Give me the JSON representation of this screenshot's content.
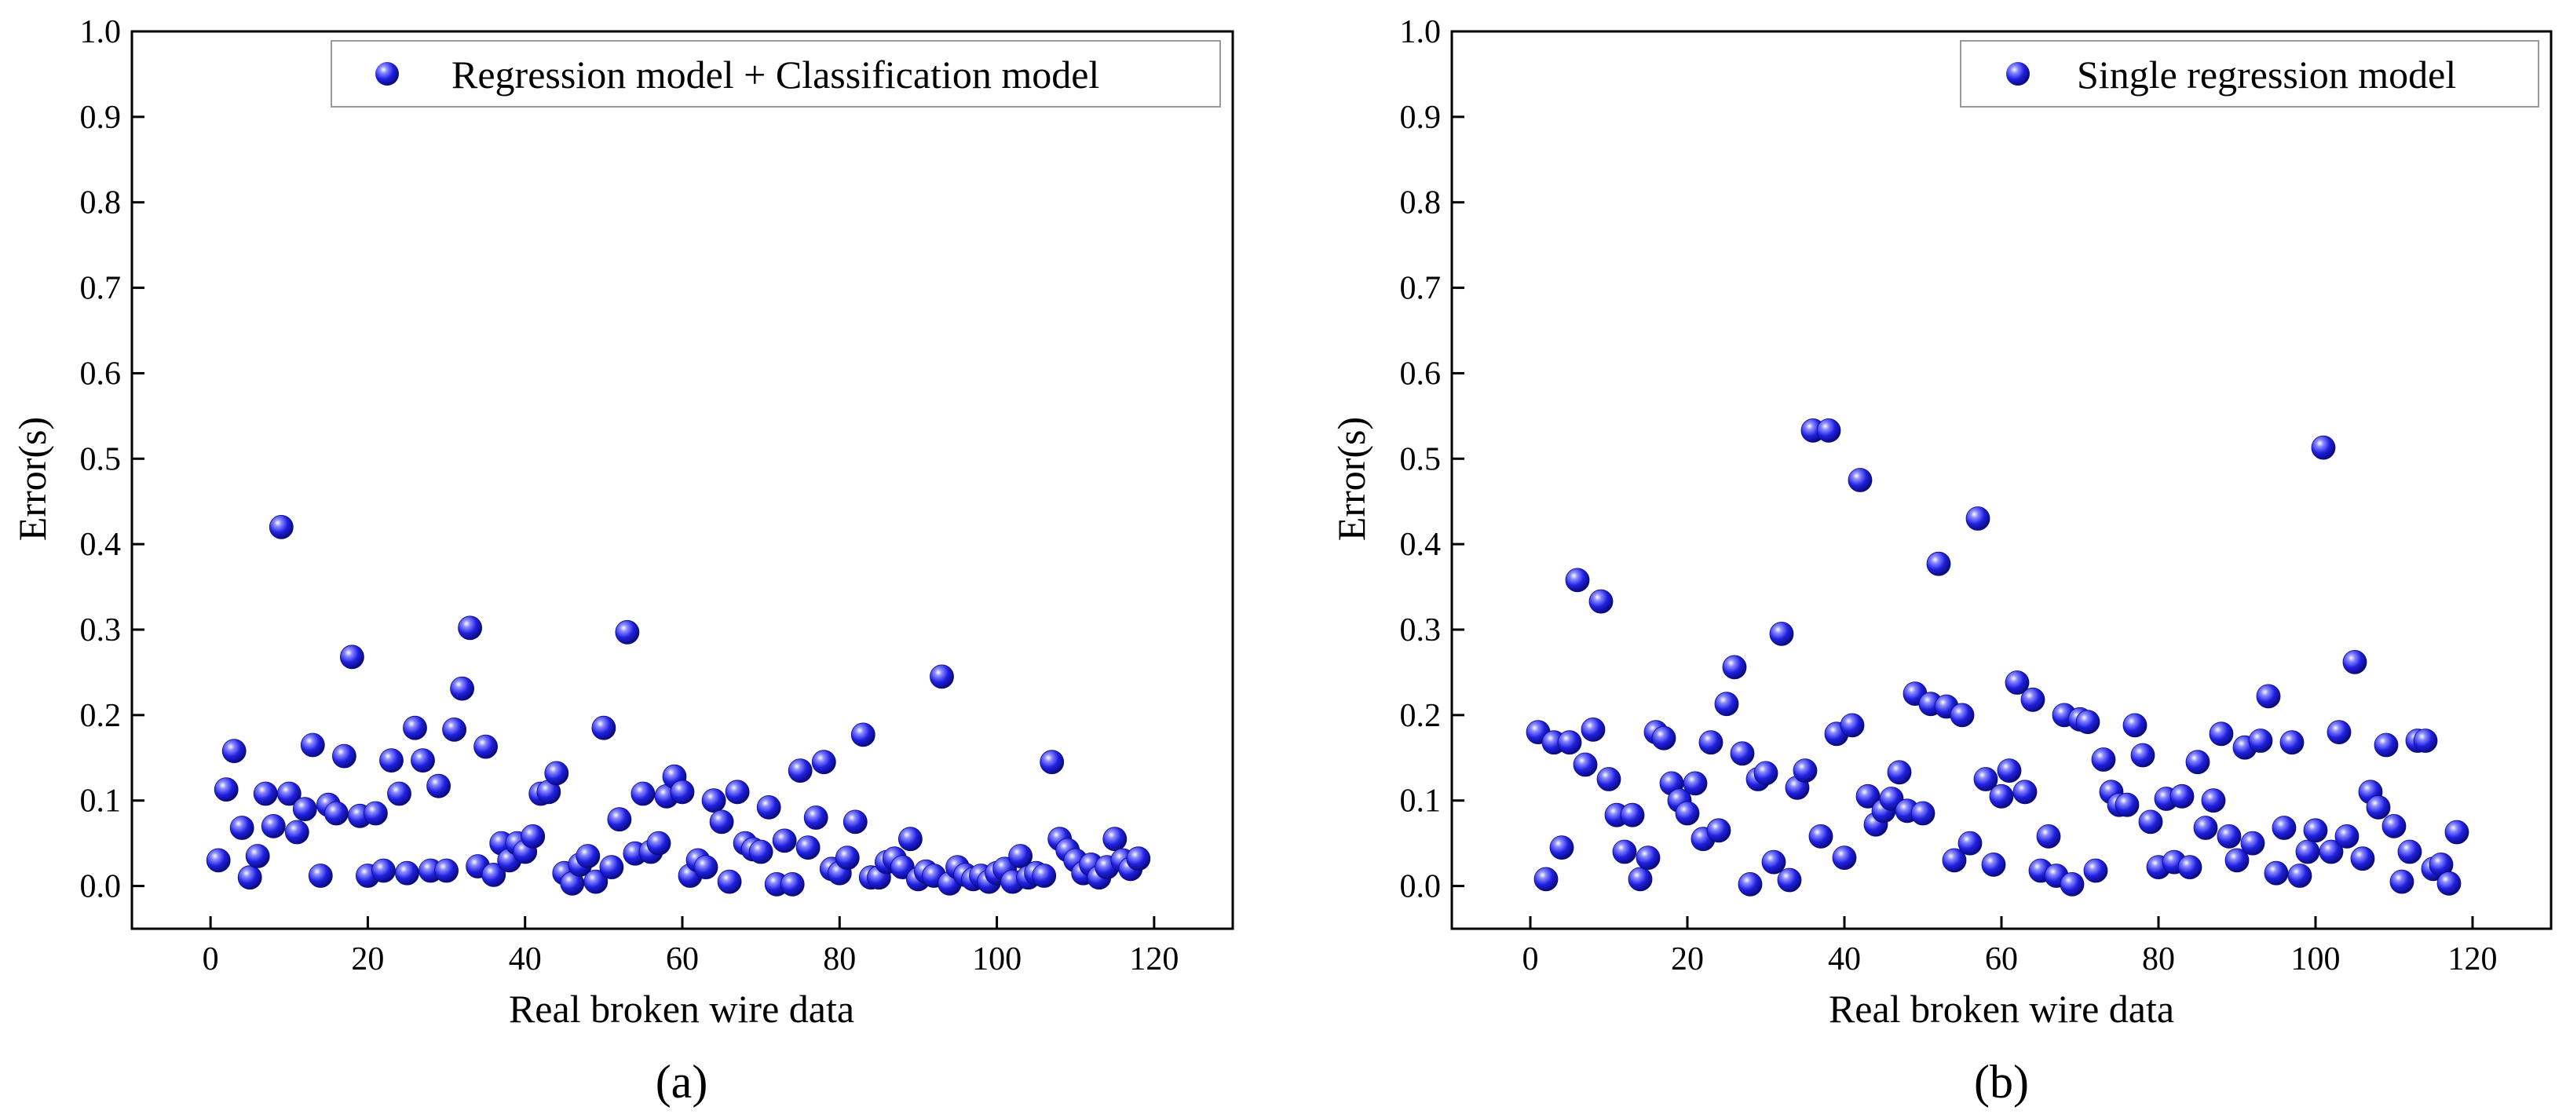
{
  "figure": {
    "caption_a": "(a)",
    "caption_b": "(b)"
  },
  "chart_data": [
    {
      "type": "scatter",
      "panel": "a",
      "title": "",
      "xlabel": "Real broken wire data",
      "ylabel": "Error(s)",
      "xlim": [
        -10,
        130
      ],
      "ylim": [
        -0.05,
        1.0
      ],
      "xticks": [
        0,
        20,
        40,
        60,
        80,
        100,
        120
      ],
      "xtick_labels": [
        "0",
        "20",
        "40",
        "60",
        "80",
        "100",
        "120"
      ],
      "yticks": [
        0.0,
        0.1,
        0.2,
        0.3,
        0.4,
        0.5,
        0.6,
        0.7,
        0.8,
        0.9,
        1.0
      ],
      "ytick_labels": [
        "0.0",
        "0.1",
        "0.2",
        "0.3",
        "0.4",
        "0.5",
        "0.6",
        "0.7",
        "0.8",
        "0.9",
        "1.0"
      ],
      "legend": "top-right",
      "marker_color": "#1f1fe0",
      "series": [
        {
          "name": "Regression model + Classification model",
          "x": [
            1,
            2,
            3,
            4,
            5,
            6,
            7,
            8,
            9,
            10,
            11,
            12,
            13,
            14,
            15,
            16,
            17,
            18,
            19,
            20,
            21,
            22,
            23,
            24,
            25,
            26,
            27,
            28,
            29,
            30,
            31,
            32,
            33,
            34,
            35,
            36,
            37,
            38,
            39,
            40,
            41,
            42,
            43,
            44,
            45,
            46,
            47,
            48,
            49,
            50,
            51,
            52,
            53,
            54,
            55,
            56,
            57,
            58,
            59,
            60,
            61,
            62,
            63,
            64,
            65,
            66,
            67,
            68,
            69,
            70,
            71,
            72,
            73,
            74,
            75,
            76,
            77,
            78,
            79,
            80,
            81,
            82,
            83,
            84,
            85,
            86,
            87,
            88,
            89,
            90,
            91,
            92,
            93,
            94,
            95,
            96,
            97,
            98,
            99,
            100,
            101,
            102,
            103,
            104,
            105,
            106,
            107,
            108,
            109,
            110,
            111,
            112,
            113,
            114,
            115,
            116,
            117,
            118
          ],
          "y": [
            0.03,
            0.113,
            0.158,
            0.068,
            0.01,
            0.035,
            0.108,
            0.07,
            0.42,
            0.108,
            0.063,
            0.09,
            0.165,
            0.012,
            0.095,
            0.085,
            0.152,
            0.268,
            0.082,
            0.012,
            0.085,
            0.018,
            0.147,
            0.108,
            0.015,
            0.185,
            0.147,
            0.018,
            0.117,
            0.018,
            0.183,
            0.231,
            0.302,
            0.023,
            0.163,
            0.013,
            0.05,
            0.03,
            0.05,
            0.04,
            0.058,
            0.108,
            0.11,
            0.132,
            0.015,
            0.003,
            0.025,
            0.035,
            0.005,
            0.185,
            0.022,
            0.078,
            0.297,
            0.038,
            0.108,
            0.04,
            0.05,
            0.105,
            0.128,
            0.11,
            0.012,
            0.03,
            0.022,
            0.1,
            0.075,
            0.005,
            0.11,
            0.05,
            0.043,
            0.04,
            0.092,
            0.002,
            0.053,
            0.002,
            0.135,
            0.045,
            0.08,
            0.145,
            0.02,
            0.015,
            0.033,
            0.075,
            0.177,
            0.01,
            0.01,
            0.028,
            0.032,
            0.022,
            0.055,
            0.008,
            0.017,
            0.012,
            0.245,
            0.003,
            0.022,
            0.013,
            0.008,
            0.012,
            0.005,
            0.015,
            0.02,
            0.005,
            0.035,
            0.01,
            0.015,
            0.012,
            0.145,
            0.055,
            0.042,
            0.03,
            0.015,
            0.025,
            0.01,
            0.022,
            0.055,
            0.03,
            0.02,
            0.032
          ]
        }
      ]
    },
    {
      "type": "scatter",
      "panel": "b",
      "title": "",
      "xlabel": "Real broken wire data",
      "ylabel": "Error(s)",
      "xlim": [
        -10,
        130
      ],
      "ylim": [
        -0.05,
        1.0
      ],
      "xticks": [
        0,
        20,
        40,
        60,
        80,
        100,
        120
      ],
      "xtick_labels": [
        "0",
        "20",
        "40",
        "60",
        "80",
        "100",
        "120"
      ],
      "yticks": [
        0.0,
        0.1,
        0.2,
        0.3,
        0.4,
        0.5,
        0.6,
        0.7,
        0.8,
        0.9,
        1.0
      ],
      "ytick_labels": [
        "0.0",
        "0.1",
        "0.2",
        "0.3",
        "0.4",
        "0.5",
        "0.6",
        "0.7",
        "0.8",
        "0.9",
        "1.0"
      ],
      "legend": "top-right",
      "marker_color": "#1f1fe0",
      "series": [
        {
          "name": "Single regression model",
          "x": [
            1,
            2,
            3,
            4,
            5,
            6,
            7,
            8,
            9,
            10,
            11,
            12,
            13,
            14,
            15,
            16,
            17,
            18,
            19,
            20,
            21,
            22,
            23,
            24,
            25,
            26,
            27,
            28,
            29,
            30,
            31,
            32,
            33,
            34,
            35,
            36,
            37,
            38,
            39,
            40,
            41,
            42,
            43,
            44,
            45,
            46,
            47,
            48,
            49,
            50,
            51,
            52,
            53,
            54,
            55,
            56,
            57,
            58,
            59,
            60,
            61,
            62,
            63,
            64,
            65,
            66,
            67,
            68,
            69,
            70,
            71,
            72,
            73,
            74,
            75,
            76,
            77,
            78,
            79,
            80,
            81,
            82,
            83,
            84,
            85,
            86,
            87,
            88,
            89,
            90,
            91,
            92,
            93,
            94,
            95,
            96,
            97,
            98,
            99,
            100,
            101,
            102,
            103,
            104,
            105,
            106,
            107,
            108,
            109,
            110,
            111,
            112,
            113,
            114,
            115,
            116,
            117,
            118
          ],
          "y": [
            0.18,
            0.008,
            0.168,
            0.045,
            0.168,
            0.358,
            0.142,
            0.183,
            0.333,
            0.125,
            0.083,
            0.04,
            0.083,
            0.008,
            0.033,
            0.18,
            0.173,
            0.12,
            0.1,
            0.085,
            0.12,
            0.055,
            0.168,
            0.065,
            0.213,
            0.256,
            0.155,
            0.002,
            0.125,
            0.132,
            0.028,
            0.295,
            0.007,
            0.115,
            0.135,
            0.533,
            0.058,
            0.533,
            0.178,
            0.033,
            0.188,
            0.475,
            0.105,
            0.072,
            0.088,
            0.102,
            0.133,
            0.088,
            0.225,
            0.085,
            0.213,
            0.377,
            0.21,
            0.03,
            0.2,
            0.05,
            0.43,
            0.125,
            0.025,
            0.105,
            0.135,
            0.238,
            0.11,
            0.218,
            0.018,
            0.058,
            0.012,
            0.2,
            0.002,
            0.195,
            0.192,
            0.018,
            0.148,
            0.11,
            0.095,
            0.095,
            0.188,
            0.153,
            0.075,
            0.022,
            0.102,
            0.028,
            0.105,
            0.022,
            0.145,
            0.068,
            0.1,
            0.178,
            0.058,
            0.03,
            0.162,
            0.05,
            0.17,
            0.222,
            0.015,
            0.068,
            0.168,
            0.012,
            0.04,
            0.065,
            0.513,
            0.04,
            0.18,
            0.058,
            0.262,
            0.032,
            0.11,
            0.092,
            0.165,
            0.07,
            0.005,
            0.04,
            0.17,
            0.17,
            0.02,
            0.025,
            0.003,
            0.063
          ]
        }
      ]
    }
  ]
}
